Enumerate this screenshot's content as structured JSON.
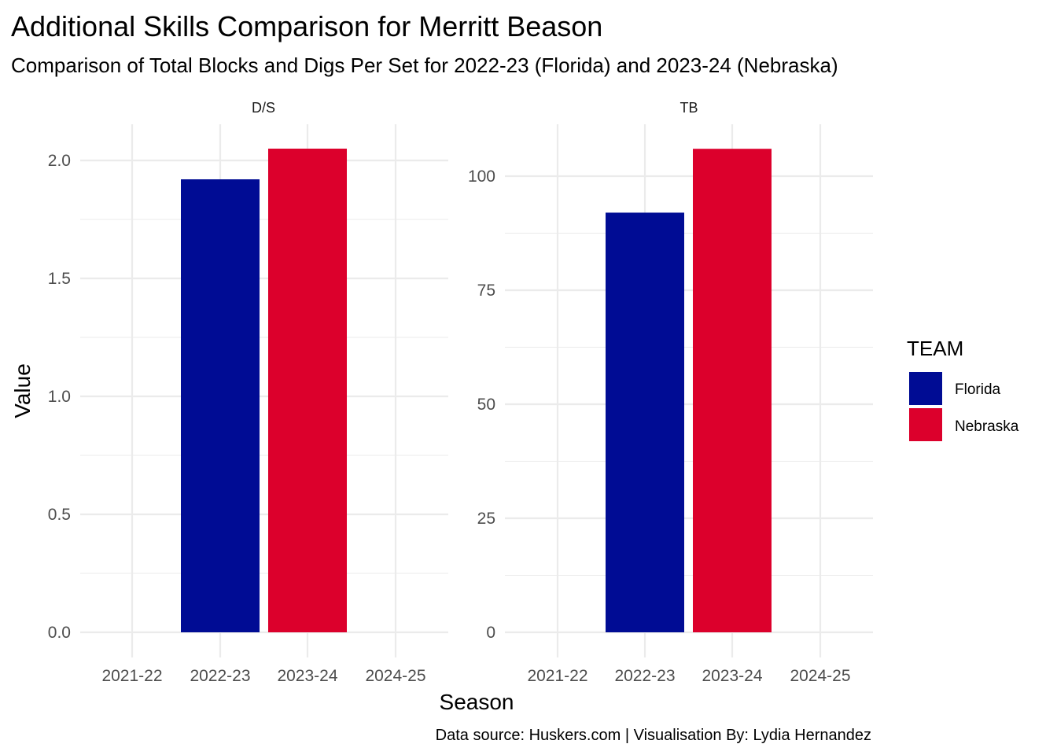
{
  "chart_data": {
    "type": "bar",
    "title": "Additional Skills Comparison for Merritt Beason",
    "subtitle": "Comparison of Total Blocks and Digs Per Set for 2022-23 (Florida) and 2023-24 (Nebraska)",
    "xlabel": "Season",
    "ylabel": "Value",
    "caption": "Data source: Huskers.com | Visualisation By: Lydia Hernandez",
    "categories": [
      "2021-22",
      "2022-23",
      "2023-24",
      "2024-25"
    ],
    "legend": {
      "title": "TEAM",
      "position": "right",
      "items": [
        {
          "name": "Florida",
          "color": "#000c94"
        },
        {
          "name": "Nebraska",
          "color": "#dc002c"
        }
      ]
    },
    "grid": true,
    "facets": [
      {
        "label": "D/S",
        "ylim": [
          0,
          2.1
        ],
        "yticks": [
          "0.0",
          "0.5",
          "1.0",
          "1.5",
          "2.0"
        ],
        "bars": [
          {
            "category": "2022-23",
            "team": "Florida",
            "value": 1.92
          },
          {
            "category": "2023-24",
            "team": "Nebraska",
            "value": 2.05
          }
        ]
      },
      {
        "label": "TB",
        "ylim": [
          0,
          110
        ],
        "yticks": [
          "0",
          "25",
          "50",
          "75",
          "100"
        ],
        "bars": [
          {
            "category": "2022-23",
            "team": "Florida",
            "value": 92
          },
          {
            "category": "2023-24",
            "team": "Nebraska",
            "value": 106
          }
        ]
      }
    ]
  }
}
